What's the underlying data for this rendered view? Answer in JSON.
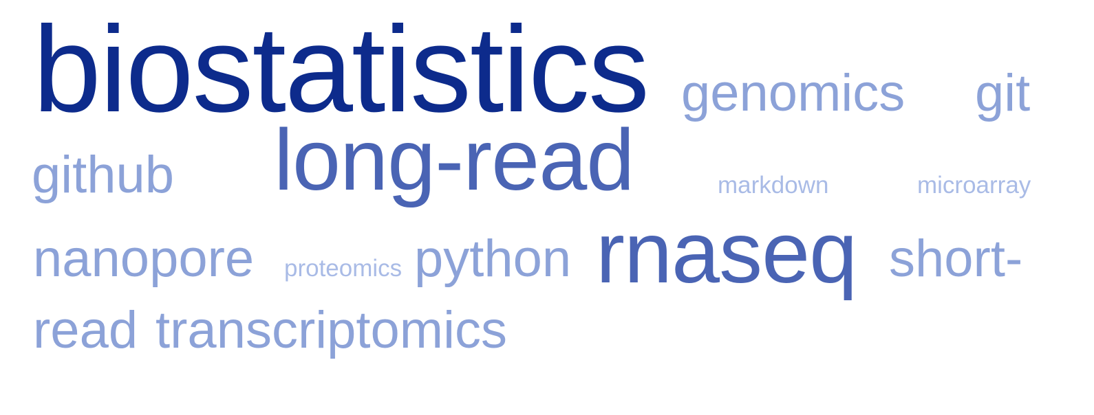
{
  "word_cloud": {
    "colors": {
      "dark": "#0d2b8c",
      "mid": "#4a64b4",
      "light": "#8ca2d8",
      "faint": "#a9bbe6",
      "background": "#ffffff"
    },
    "words": [
      {
        "text": "biostatistics",
        "weight": "largest",
        "color": "dark"
      },
      {
        "text": "genomics",
        "weight": "medium",
        "color": "light"
      },
      {
        "text": "git",
        "weight": "medium",
        "color": "light"
      },
      {
        "text": "github",
        "weight": "medium",
        "color": "light"
      },
      {
        "text": "long-read",
        "weight": "large",
        "color": "mid"
      },
      {
        "text": "markdown",
        "weight": "small",
        "color": "faint"
      },
      {
        "text": "microarray",
        "weight": "small",
        "color": "faint"
      },
      {
        "text": "nanopore",
        "weight": "medium",
        "color": "light"
      },
      {
        "text": "proteomics",
        "weight": "small",
        "color": "faint"
      },
      {
        "text": "python",
        "weight": "medium",
        "color": "light"
      },
      {
        "text": "rnaseq",
        "weight": "large",
        "color": "mid"
      },
      {
        "text": "short-",
        "weight": "medium",
        "color": "light"
      },
      {
        "text": "read",
        "weight": "medium",
        "color": "light"
      },
      {
        "text": "transcriptomics",
        "weight": "medium",
        "color": "light"
      }
    ]
  }
}
